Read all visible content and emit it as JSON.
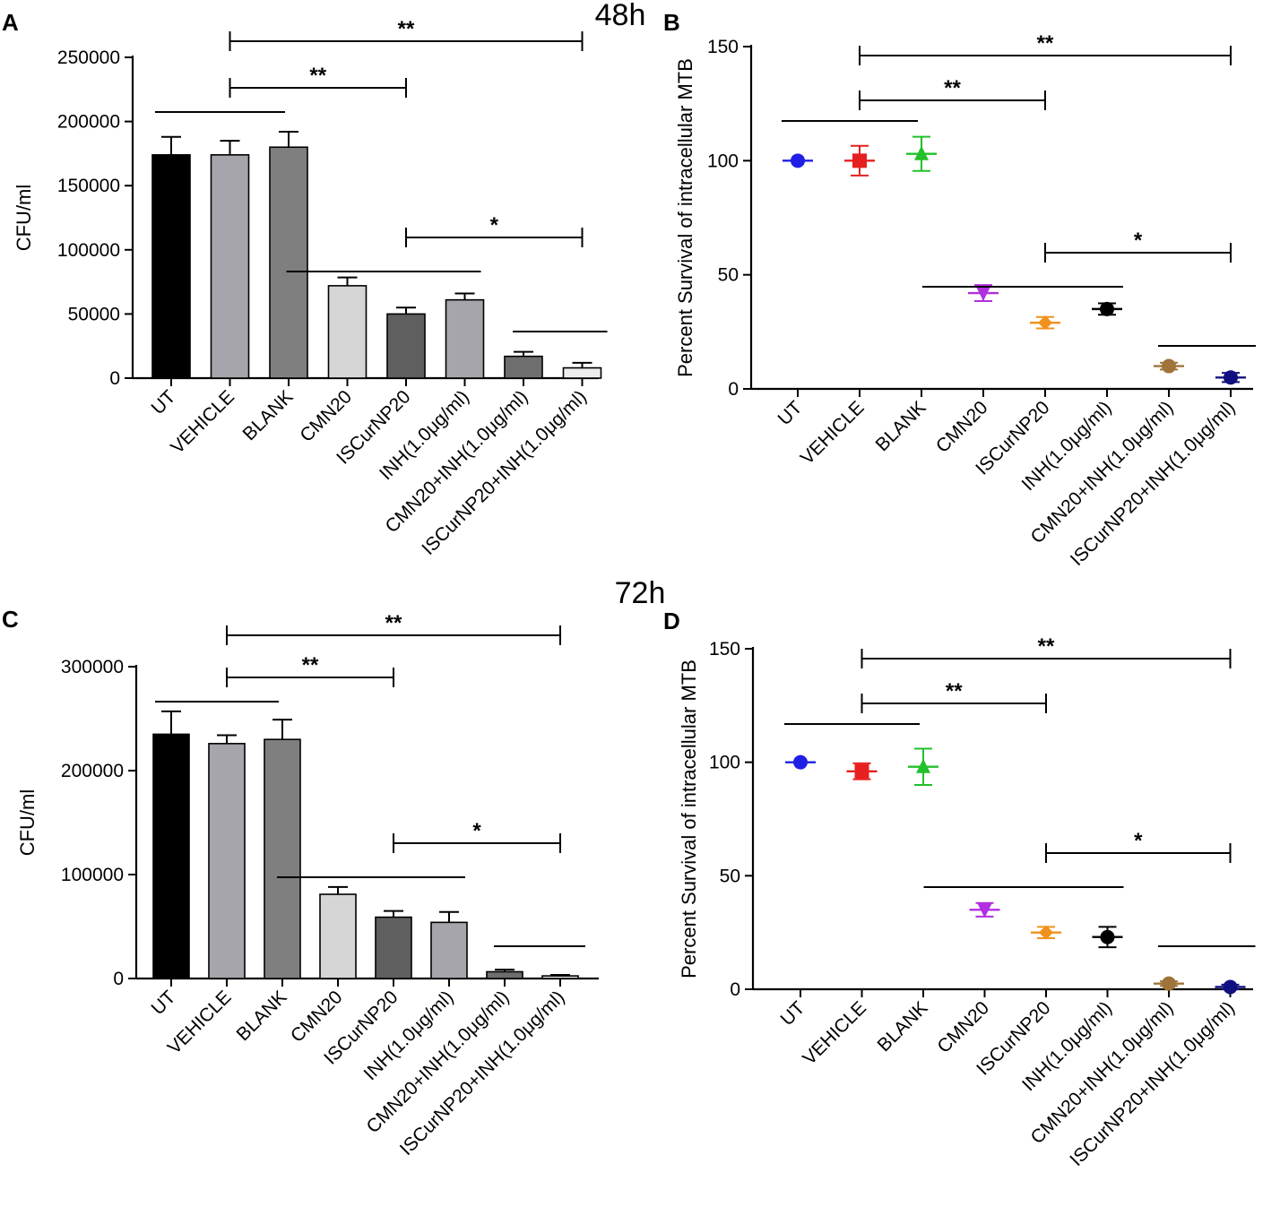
{
  "timepoints": [
    "48h",
    "72h"
  ],
  "chart_data": [
    {
      "panel": "A",
      "type": "bar",
      "title": "48h",
      "ylabel": "CFU/ml",
      "xlabel": "",
      "ylim": [
        0,
        250000
      ],
      "yticks": [
        "0",
        "50000",
        "100000",
        "150000",
        "200000",
        "250000"
      ],
      "categories": [
        "UT",
        "VEHICLE",
        "BLANK",
        "CMN20",
        "ISCurNP20",
        "INH(1.0μg/ml)",
        "CMN20+INH(1.0μg/ml)",
        "ISCurNP20+INH(1.0μg/ml)"
      ],
      "values": [
        174000,
        174000,
        180000,
        72000,
        50000,
        61000,
        17000,
        8000
      ],
      "errors": [
        14000,
        11000,
        12000,
        6500,
        5000,
        5000,
        3500,
        4000
      ],
      "colors": [
        "#000000",
        "#a5a5ab",
        "#7f7f7f",
        "#d6d6d6",
        "#5f5f5f",
        "#a5a5ab",
        "#6e6e6e",
        "#ececec"
      ],
      "significance": [
        {
          "label": "**",
          "ref": [
            1,
            1
          ],
          "comp": [
            7,
            7
          ]
        },
        {
          "label": "**",
          "ref": [
            1,
            1
          ],
          "comp": [
            4,
            4
          ]
        },
        {
          "label": "",
          "ref": [
            0,
            2
          ]
        },
        {
          "label": "*",
          "ref": [
            3,
            5
          ],
          "comp": [
            7,
            7
          ]
        },
        {
          "label": "",
          "ref": [
            6,
            7
          ]
        }
      ]
    },
    {
      "panel": "B",
      "type": "scatter",
      "title": "48h",
      "ylabel": "Percent Survival of intracellular MTB",
      "xlabel": "",
      "ylim": [
        0,
        150
      ],
      "yticks": [
        "0",
        "50",
        "100",
        "150"
      ],
      "categories": [
        "UT",
        "VEHICLE",
        "BLANK",
        "CMN20",
        "ISCurNP20",
        "INH(1.0μg/ml)",
        "CMN20+INH(1.0μg/ml)",
        "ISCurNP20+INH(1.0μg/ml)"
      ],
      "values": [
        100,
        100,
        103,
        42,
        29,
        35,
        10,
        5
      ],
      "errors": [
        0,
        6.5,
        7.5,
        3.5,
        2.5,
        2.5,
        1.5,
        2
      ],
      "colors": [
        "#1f1fe6",
        "#e61f1f",
        "#22c02a",
        "#b12fe0",
        "#f0911c",
        "#000000",
        "#a0733a",
        "#101080"
      ],
      "markers": [
        "circle",
        "square",
        "triangle-up",
        "triangle-down",
        "diamond",
        "circle",
        "circle",
        "circle"
      ],
      "significance": [
        {
          "label": "**",
          "ref": [
            1,
            1
          ],
          "comp": [
            7,
            7
          ]
        },
        {
          "label": "**",
          "ref": [
            1,
            1
          ],
          "comp": [
            4,
            4
          ]
        },
        {
          "label": "",
          "ref": [
            0,
            2
          ]
        },
        {
          "label": "*",
          "ref": [
            3,
            5
          ],
          "comp": [
            7,
            7
          ]
        },
        {
          "label": "",
          "ref": [
            6,
            7
          ]
        }
      ]
    },
    {
      "panel": "C",
      "type": "bar",
      "title": "72h",
      "ylabel": "CFU/ml",
      "xlabel": "",
      "ylim": [
        0,
        300000
      ],
      "yticks": [
        "0",
        "100000",
        "200000",
        "300000"
      ],
      "categories": [
        "UT",
        "VEHICLE",
        "BLANK",
        "CMN20",
        "ISCurNP20",
        "INH(1.0μg/ml)",
        "CMN20+INH(1.0μg/ml)",
        "ISCurNP20+INH(1.0μg/ml)"
      ],
      "values": [
        235000,
        226000,
        230000,
        81000,
        59000,
        54000,
        6500,
        2500
      ],
      "errors": [
        22000,
        8000,
        19000,
        7000,
        6000,
        10000,
        2000,
        1000
      ],
      "colors": [
        "#000000",
        "#a5a5ab",
        "#7f7f7f",
        "#d6d6d6",
        "#5f5f5f",
        "#a5a5ab",
        "#6e6e6e",
        "#ececec"
      ],
      "significance": [
        {
          "label": "**",
          "ref": [
            1,
            1
          ],
          "comp": [
            7,
            7
          ]
        },
        {
          "label": "**",
          "ref": [
            1,
            1
          ],
          "comp": [
            4,
            4
          ]
        },
        {
          "label": "",
          "ref": [
            0,
            2
          ]
        },
        {
          "label": "*",
          "ref": [
            3,
            5
          ],
          "comp": [
            7,
            7
          ]
        },
        {
          "label": "",
          "ref": [
            6,
            7
          ]
        }
      ]
    },
    {
      "panel": "D",
      "type": "scatter",
      "title": "72h",
      "ylabel": "Percent Survival of intracellular MTB",
      "xlabel": "",
      "ylim": [
        0,
        150
      ],
      "yticks": [
        "0",
        "50",
        "100",
        "150"
      ],
      "categories": [
        "UT",
        "VEHICLE",
        "BLANK",
        "CMN20",
        "ISCurNP20",
        "INH(1.0μg/ml)",
        "CMN20+INH(1.0μg/ml)",
        "ISCurNP20+INH(1.0μg/ml)"
      ],
      "values": [
        100,
        96,
        98,
        35,
        25,
        23,
        2.5,
        1
      ],
      "errors": [
        0,
        3.5,
        8,
        3,
        2.5,
        4.5,
        1,
        1
      ],
      "colors": [
        "#1f1fe6",
        "#e61f1f",
        "#22c02a",
        "#b12fe0",
        "#f0911c",
        "#000000",
        "#a0733a",
        "#101080"
      ],
      "markers": [
        "circle",
        "square",
        "triangle-up",
        "triangle-down",
        "diamond",
        "circle",
        "circle",
        "circle"
      ],
      "significance": [
        {
          "label": "**",
          "ref": [
            1,
            1
          ],
          "comp": [
            7,
            7
          ]
        },
        {
          "label": "**",
          "ref": [
            1,
            1
          ],
          "comp": [
            4,
            4
          ]
        },
        {
          "label": "",
          "ref": [
            0,
            2
          ]
        },
        {
          "label": "*",
          "ref": [
            3,
            5
          ],
          "comp": [
            7,
            7
          ]
        },
        {
          "label": "",
          "ref": [
            6,
            7
          ]
        }
      ]
    }
  ]
}
